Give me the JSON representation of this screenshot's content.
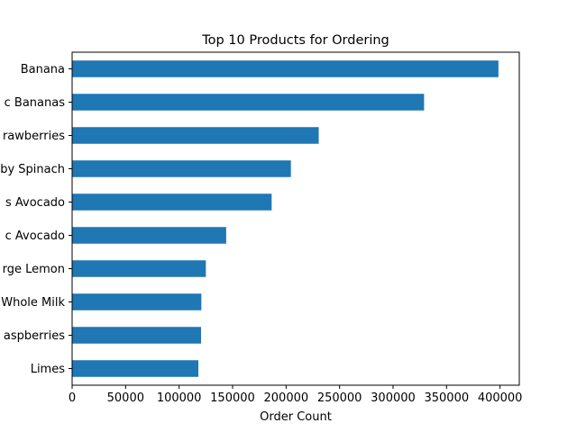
{
  "chart_data": {
    "type": "bar",
    "orientation": "horizontal",
    "title": "Top 10 Products for Ordering",
    "xlabel": "Order Count",
    "ylabel": "",
    "categories": [
      "Limes",
      "aspberries",
      "Whole Milk",
      "rge Lemon",
      "c Avocado",
      "s Avocado",
      "by Spinach",
      "rawberries",
      "c Bananas",
      "Banana"
    ],
    "values": [
      118000,
      120500,
      120800,
      125000,
      144000,
      186500,
      204500,
      230500,
      329000,
      398500
    ],
    "xlim": [
      0,
      418000
    ],
    "xticks": [
      0,
      50000,
      100000,
      150000,
      200000,
      250000,
      300000,
      350000,
      400000
    ],
    "xtick_labels": [
      "0",
      "50000",
      "100000",
      "150000",
      "200000",
      "250000",
      "300000",
      "350000",
      "400000"
    ],
    "bar_color": "#1f77b4",
    "grid": false,
    "legend": "none"
  }
}
